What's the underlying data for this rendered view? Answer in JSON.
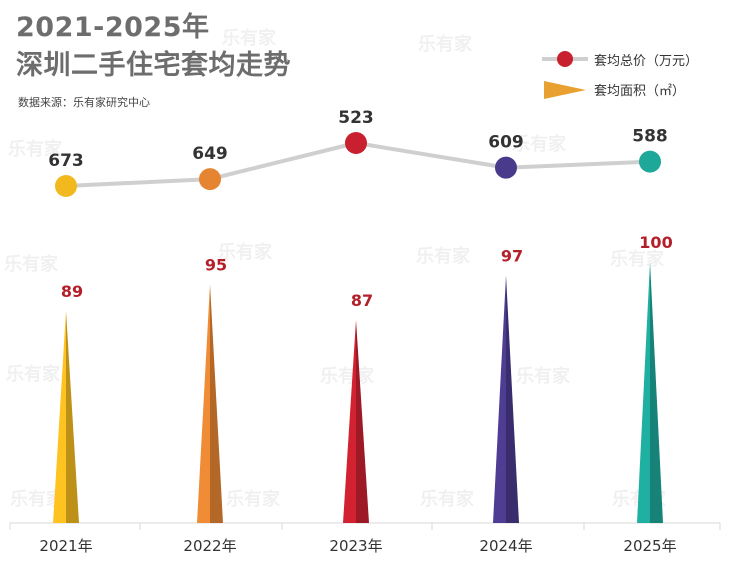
{
  "title_line1": "2021-2025年",
  "title_line2": "深圳二手住宅套均走势",
  "source": "数据来源：乐有家研究中心",
  "watermark": "乐有家",
  "legend": {
    "line_label": "套均总价（万元）",
    "cone_label": "套均面积（㎡）"
  },
  "chart_data": {
    "type": "line+bar",
    "categories": [
      "2021年",
      "2022年",
      "2023年",
      "2024年",
      "2025年"
    ],
    "series": [
      {
        "name": "套均总价（万元）",
        "type": "line",
        "values": [
          673,
          649,
          523,
          609,
          588
        ]
      },
      {
        "name": "套均面积（㎡）",
        "type": "bar",
        "values": [
          89,
          95,
          87,
          97,
          100
        ]
      }
    ],
    "colors": [
      "#f2b91f",
      "#e58532",
      "#c8202f",
      "#4a3a8c",
      "#1ea89a"
    ],
    "line_color": "#cfcfcf",
    "value_label_color_bar": "#b51f2a",
    "value_label_color_line": "#333333",
    "legend_dot_color": "#c8202f",
    "legend_cone_color": "#e8a030"
  }
}
